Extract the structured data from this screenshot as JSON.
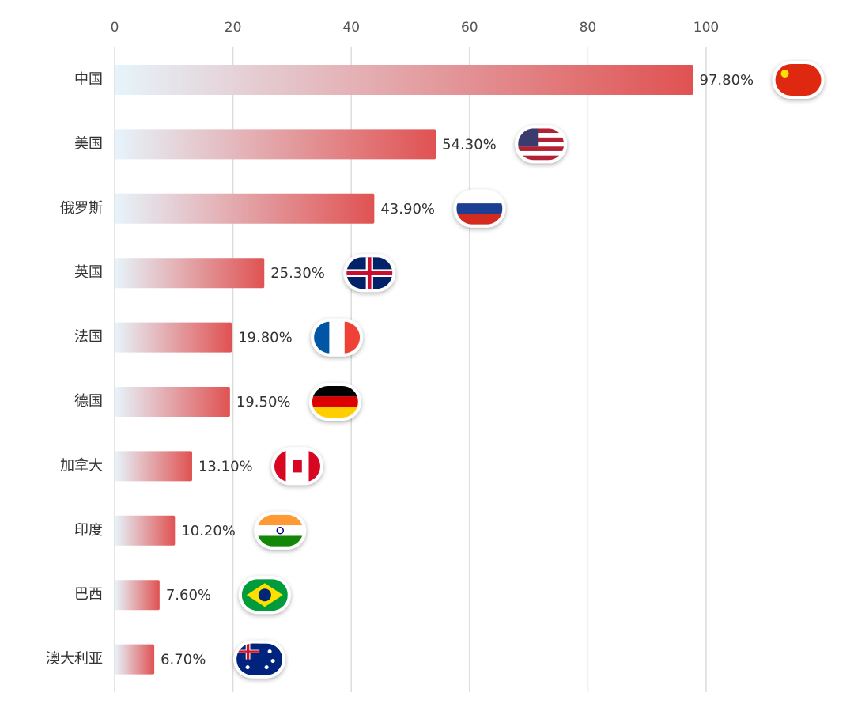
{
  "chart_data": {
    "type": "bar",
    "orientation": "horizontal",
    "categories": [
      "中国",
      "美国",
      "俄罗斯",
      "英国",
      "法国",
      "德国",
      "加拿大",
      "印度",
      "巴西",
      "澳大利亚"
    ],
    "values": [
      97.8,
      54.3,
      43.9,
      25.3,
      19.8,
      19.5,
      13.1,
      10.2,
      7.6,
      6.7
    ],
    "value_labels": [
      "97.80%",
      "54.30%",
      "43.90%",
      "25.30%",
      "19.80%",
      "19.50%",
      "13.10%",
      "10.20%",
      "7.60%",
      "6.70%"
    ],
    "color": "#e05252",
    "xlim": [
      0,
      100
    ],
    "xticks": [
      0,
      20,
      40,
      60,
      80,
      100
    ],
    "grid": true
  }
}
